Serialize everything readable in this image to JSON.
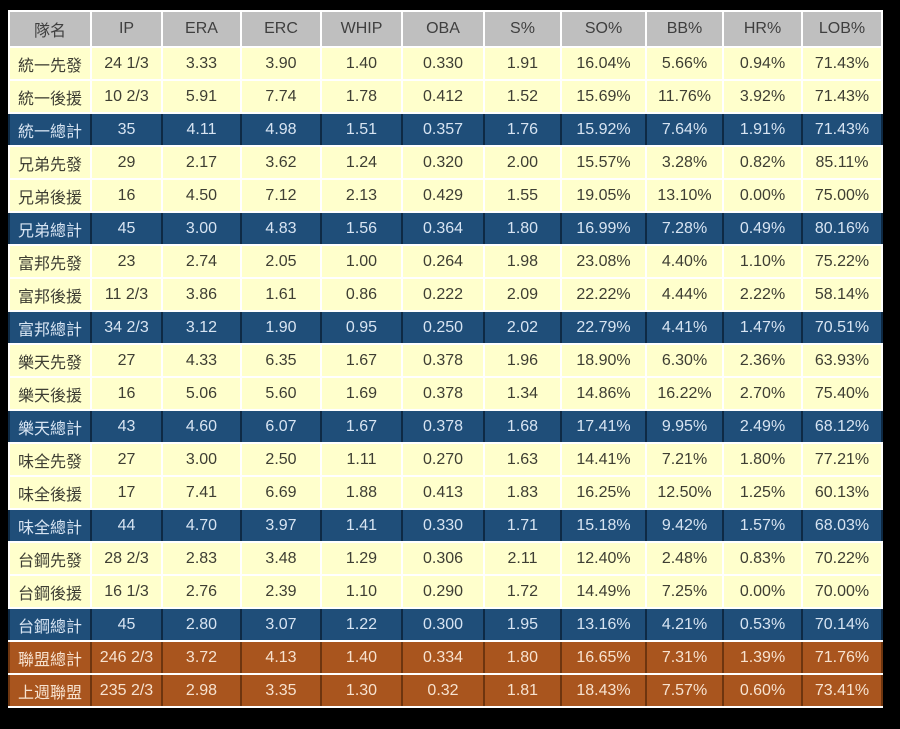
{
  "chart_data": {
    "type": "table",
    "columns": [
      "隊名",
      "IP",
      "ERA",
      "ERC",
      "WHIP",
      "OBA",
      "S%",
      "SO%",
      "BB%",
      "HR%",
      "LOB%"
    ],
    "rows": [
      {
        "style": "normal",
        "cells": [
          "統一先發",
          "24 1/3",
          "3.33",
          "3.90",
          "1.40",
          "0.330",
          "1.91",
          "16.04%",
          "5.66%",
          "0.94%",
          "71.43%"
        ]
      },
      {
        "style": "normal",
        "cells": [
          "統一後援",
          "10 2/3",
          "5.91",
          "7.74",
          "1.78",
          "0.412",
          "1.52",
          "15.69%",
          "11.76%",
          "3.92%",
          "71.43%"
        ]
      },
      {
        "style": "total",
        "cells": [
          "統一總計",
          "35",
          "4.11",
          "4.98",
          "1.51",
          "0.357",
          "1.76",
          "15.92%",
          "7.64%",
          "1.91%",
          "71.43%"
        ]
      },
      {
        "style": "normal",
        "cells": [
          "兄弟先發",
          "29",
          "2.17",
          "3.62",
          "1.24",
          "0.320",
          "2.00",
          "15.57%",
          "3.28%",
          "0.82%",
          "85.11%"
        ]
      },
      {
        "style": "normal",
        "cells": [
          "兄弟後援",
          "16",
          "4.50",
          "7.12",
          "2.13",
          "0.429",
          "1.55",
          "19.05%",
          "13.10%",
          "0.00%",
          "75.00%"
        ]
      },
      {
        "style": "total",
        "cells": [
          "兄弟總計",
          "45",
          "3.00",
          "4.83",
          "1.56",
          "0.364",
          "1.80",
          "16.99%",
          "7.28%",
          "0.49%",
          "80.16%"
        ]
      },
      {
        "style": "normal",
        "cells": [
          "富邦先發",
          "23",
          "2.74",
          "2.05",
          "1.00",
          "0.264",
          "1.98",
          "23.08%",
          "4.40%",
          "1.10%",
          "75.22%"
        ]
      },
      {
        "style": "normal",
        "cells": [
          "富邦後援",
          "11 2/3",
          "3.86",
          "1.61",
          "0.86",
          "0.222",
          "2.09",
          "22.22%",
          "4.44%",
          "2.22%",
          "58.14%"
        ]
      },
      {
        "style": "total",
        "cells": [
          "富邦總計",
          "34 2/3",
          "3.12",
          "1.90",
          "0.95",
          "0.250",
          "2.02",
          "22.79%",
          "4.41%",
          "1.47%",
          "70.51%"
        ]
      },
      {
        "style": "normal",
        "cells": [
          "樂天先發",
          "27",
          "4.33",
          "6.35",
          "1.67",
          "0.378",
          "1.96",
          "18.90%",
          "6.30%",
          "2.36%",
          "63.93%"
        ]
      },
      {
        "style": "normal",
        "cells": [
          "樂天後援",
          "16",
          "5.06",
          "5.60",
          "1.69",
          "0.378",
          "1.34",
          "14.86%",
          "16.22%",
          "2.70%",
          "75.40%"
        ]
      },
      {
        "style": "total",
        "cells": [
          "樂天總計",
          "43",
          "4.60",
          "6.07",
          "1.67",
          "0.378",
          "1.68",
          "17.41%",
          "9.95%",
          "2.49%",
          "68.12%"
        ]
      },
      {
        "style": "normal",
        "cells": [
          "味全先發",
          "27",
          "3.00",
          "2.50",
          "1.11",
          "0.270",
          "1.63",
          "14.41%",
          "7.21%",
          "1.80%",
          "77.21%"
        ]
      },
      {
        "style": "normal",
        "cells": [
          "味全後援",
          "17",
          "7.41",
          "6.69",
          "1.88",
          "0.413",
          "1.83",
          "16.25%",
          "12.50%",
          "1.25%",
          "60.13%"
        ]
      },
      {
        "style": "total",
        "cells": [
          "味全總計",
          "44",
          "4.70",
          "3.97",
          "1.41",
          "0.330",
          "1.71",
          "15.18%",
          "9.42%",
          "1.57%",
          "68.03%"
        ]
      },
      {
        "style": "normal",
        "cells": [
          "台鋼先發",
          "28 2/3",
          "2.83",
          "3.48",
          "1.29",
          "0.306",
          "2.11",
          "12.40%",
          "2.48%",
          "0.83%",
          "70.22%"
        ]
      },
      {
        "style": "normal",
        "cells": [
          "台鋼後援",
          "16 1/3",
          "2.76",
          "2.39",
          "1.10",
          "0.290",
          "1.72",
          "14.49%",
          "7.25%",
          "0.00%",
          "70.00%"
        ]
      },
      {
        "style": "total",
        "cells": [
          "台鋼總計",
          "45",
          "2.80",
          "3.07",
          "1.22",
          "0.300",
          "1.95",
          "13.16%",
          "4.21%",
          "0.53%",
          "70.14%"
        ]
      },
      {
        "style": "league",
        "cells": [
          "聯盟總計",
          "246 2/3",
          "3.72",
          "4.13",
          "1.40",
          "0.334",
          "1.80",
          "16.65%",
          "7.31%",
          "1.39%",
          "71.76%"
        ]
      },
      {
        "style": "league",
        "cells": [
          "上週聯盟",
          "235 2/3",
          "2.98",
          "3.35",
          "1.30",
          "0.32",
          "1.81",
          "18.43%",
          "7.57%",
          "0.60%",
          "73.41%"
        ]
      }
    ],
    "layout_hints": {
      "grid": true,
      "header_row": true,
      "subtotal_rows_highlighted": true
    }
  },
  "colors": {
    "background": "#000000",
    "header_bg": "#BFBFBF",
    "header_text": "#3F3F3F",
    "row_bg": "#FFFFCC",
    "row_text": "#3E3E33",
    "total_bg": "#1F4E79",
    "total_text": "#D7E4F2",
    "league_bg": "#A9551E",
    "league_text": "#F7E2CF",
    "grid_border": "#FFFFFF"
  }
}
